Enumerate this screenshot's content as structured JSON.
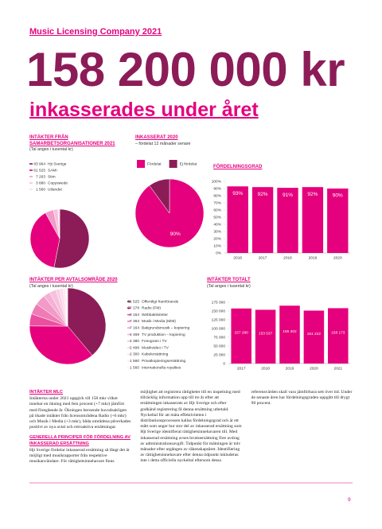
{
  "header": {
    "kicker": "Music Licensing Company 2021",
    "amount": "158 200 000 kr",
    "subtitle": "inkasserades under året"
  },
  "chart_data": [
    {
      "type": "pie",
      "title": "INTÄKTER FRÅN SAMARBETSORGANISATIONER 2021",
      "subtitle": "(Tal anges i tusental kr)",
      "categories": [
        "Hjt Sverige",
        "SAMI",
        "Stim",
        "Copyswede",
        "Utlandet"
      ],
      "values": [
        83964,
        61525,
        7263,
        3880,
        1560
      ],
      "value_labels": [
        "83 964",
        "61 525",
        "7 263",
        "3 880",
        "1 560"
      ],
      "colors": [
        "#8c1c58",
        "#e5007d",
        "#f29ac8",
        "#f7c0dd",
        "#fbe0ee"
      ]
    },
    {
      "type": "pie",
      "title": "INKASSERAT 2020",
      "subtitle": "– fördelat 12 månader senare",
      "categories": [
        "Fördelat",
        "Ej fördelat"
      ],
      "values": [
        90,
        10
      ],
      "value_labels": [
        "90%",
        null
      ],
      "colors": [
        "#e5007d",
        "#8c1c58"
      ]
    },
    {
      "type": "bar",
      "title": "FÖRDELNINGSGRAD",
      "categories": [
        "2016",
        "2017",
        "2018",
        "2019",
        "2020"
      ],
      "values": [
        93,
        92,
        91,
        92,
        90
      ],
      "value_labels": [
        "93%",
        "92%",
        "91%",
        "92%",
        "90%"
      ],
      "color": "#e5007d",
      "ylim": [
        0,
        100
      ],
      "yticks": [
        {
          "value": 0,
          "label": "0%"
        },
        {
          "value": 10,
          "label": "10%"
        },
        {
          "value": 20,
          "label": "20%"
        },
        {
          "value": 30,
          "label": "30%"
        },
        {
          "value": 40,
          "label": "40%"
        },
        {
          "value": 50,
          "label": "50%"
        },
        {
          "value": 60,
          "label": "60%"
        },
        {
          "value": 70,
          "label": "70%"
        },
        {
          "value": 80,
          "label": "80%"
        },
        {
          "value": 90,
          "label": "90%"
        },
        {
          "value": 100,
          "label": "100%"
        }
      ],
      "grid": false
    },
    {
      "type": "pie",
      "title": "INTÄKTER PER AVTALSOMRÅDE 2020",
      "subtitle": "(Tal anges i tusental kr)",
      "categories": [
        "Offentligt framförande",
        "Radio (FM)",
        "Webbaktiviteter",
        "Musik i Media (MiM)",
        "Bakgrundsmusik – kopiering",
        "TV produktion – kopiering",
        "Fonogram i TV",
        "Musikvideo i TV",
        "Kabelersättning",
        "Privatkopieringsersättning",
        "Internationella royalties"
      ],
      "values": [
        61525,
        57278,
        8154,
        7363,
        7164,
        4469,
        4380,
        2498,
        2300,
        1580,
        1560
      ],
      "value_labels": [
        "61 525",
        "57 278",
        "8 154",
        "7 363",
        "7 164",
        "4 469",
        "4 380",
        "2 498",
        "2 300",
        "1 580",
        "1 560"
      ],
      "colors": [
        "#8c1c58",
        "#e5007d",
        "#ec4fa0",
        "#f07cb6",
        "#f29ac8",
        "#f5b0d3",
        "#f7c0dd",
        "#f9cfe5",
        "#fbdcec",
        "#fce7f2",
        "#fdf0f7"
      ]
    },
    {
      "type": "bar",
      "title": "INTÄKTER TOTALT",
      "subtitle": "(Tal anges i tusental kr)",
      "categories": [
        "2017",
        "2018",
        "2019",
        "2020",
        "2021"
      ],
      "values": [
        157280,
        153537,
        165302,
        151222,
        158173
      ],
      "value_labels": [
        "157 280",
        "153 537",
        "165 302",
        "151 222",
        "158 173"
      ],
      "color": "#e5007d",
      "ylim": [
        0,
        175000
      ],
      "yticks": [
        0,
        {
          "value": 25000,
          "label": "25 000"
        },
        {
          "value": 50000,
          "label": "50 000"
        },
        {
          "value": 75000,
          "label": "75 000"
        },
        {
          "value": 100000,
          "label": "100 000"
        },
        {
          "value": 125000,
          "label": "125 000"
        },
        {
          "value": 150000,
          "label": "150 000"
        },
        {
          "value": 175000,
          "label": "175 000"
        }
      ],
      "grid": false
    }
  ],
  "text": {
    "blocks": [
      {
        "heading": "INTÄKTER MLC",
        "body": "Intäkterna under 2021 uppgick till 158 mkr vilket innebar en ökning med fem procent (+7 mkr) jämfört med föregående år. Ökningen beroende huvudsakligen på ökade intäkter från licensområdena Radio (+6 mkr) och Musik i Media (+3 mkr), båda områdena påverkades positivt av nya avtal och retroaktiva ersättningar."
      },
      {
        "heading": "GENERELLA PRINCIPER FÖR FÖRDELNING AV INKASSERAD ERSÄTTNING",
        "body": "Hjt Sverige fördelar inkasserad ersättning så långt det är möjligt med musikrapporter från respektive musikanvändare. För rättighetsinnehavare finns möjlighet att registrera rättigheter till en inspelning med tillräcklig information upp till tre år efter att ersättningen inkasserats av Hjt Sverige och efter godkänd registrering få denna ersättning utbetald. Nyckeltal för att mäta effektiviteten i distributionsprocessen kallas fördelningsgrad och är ett mått som anger hur stor del av inkasserad ersättning som Hjt Sverige identifierat rättighetsinnehavaren till. Med inkasserad ersättning avses bruttoersättning före avdrag av administrationsavgift. Tidpunkt för mätningen är tolv månader efter utgången av räkenskapsåret. Identifiering av rättighetsinnehavare efter denna tidpunkt inkluderas inte i detta officiella nyckeltal eftersom dessa referensvärden skall vara jämförbara sett över tid. Under de senaste åren har fördelningsgraden uppgått till drygt 90 procent."
      }
    ]
  },
  "page_number": "9"
}
